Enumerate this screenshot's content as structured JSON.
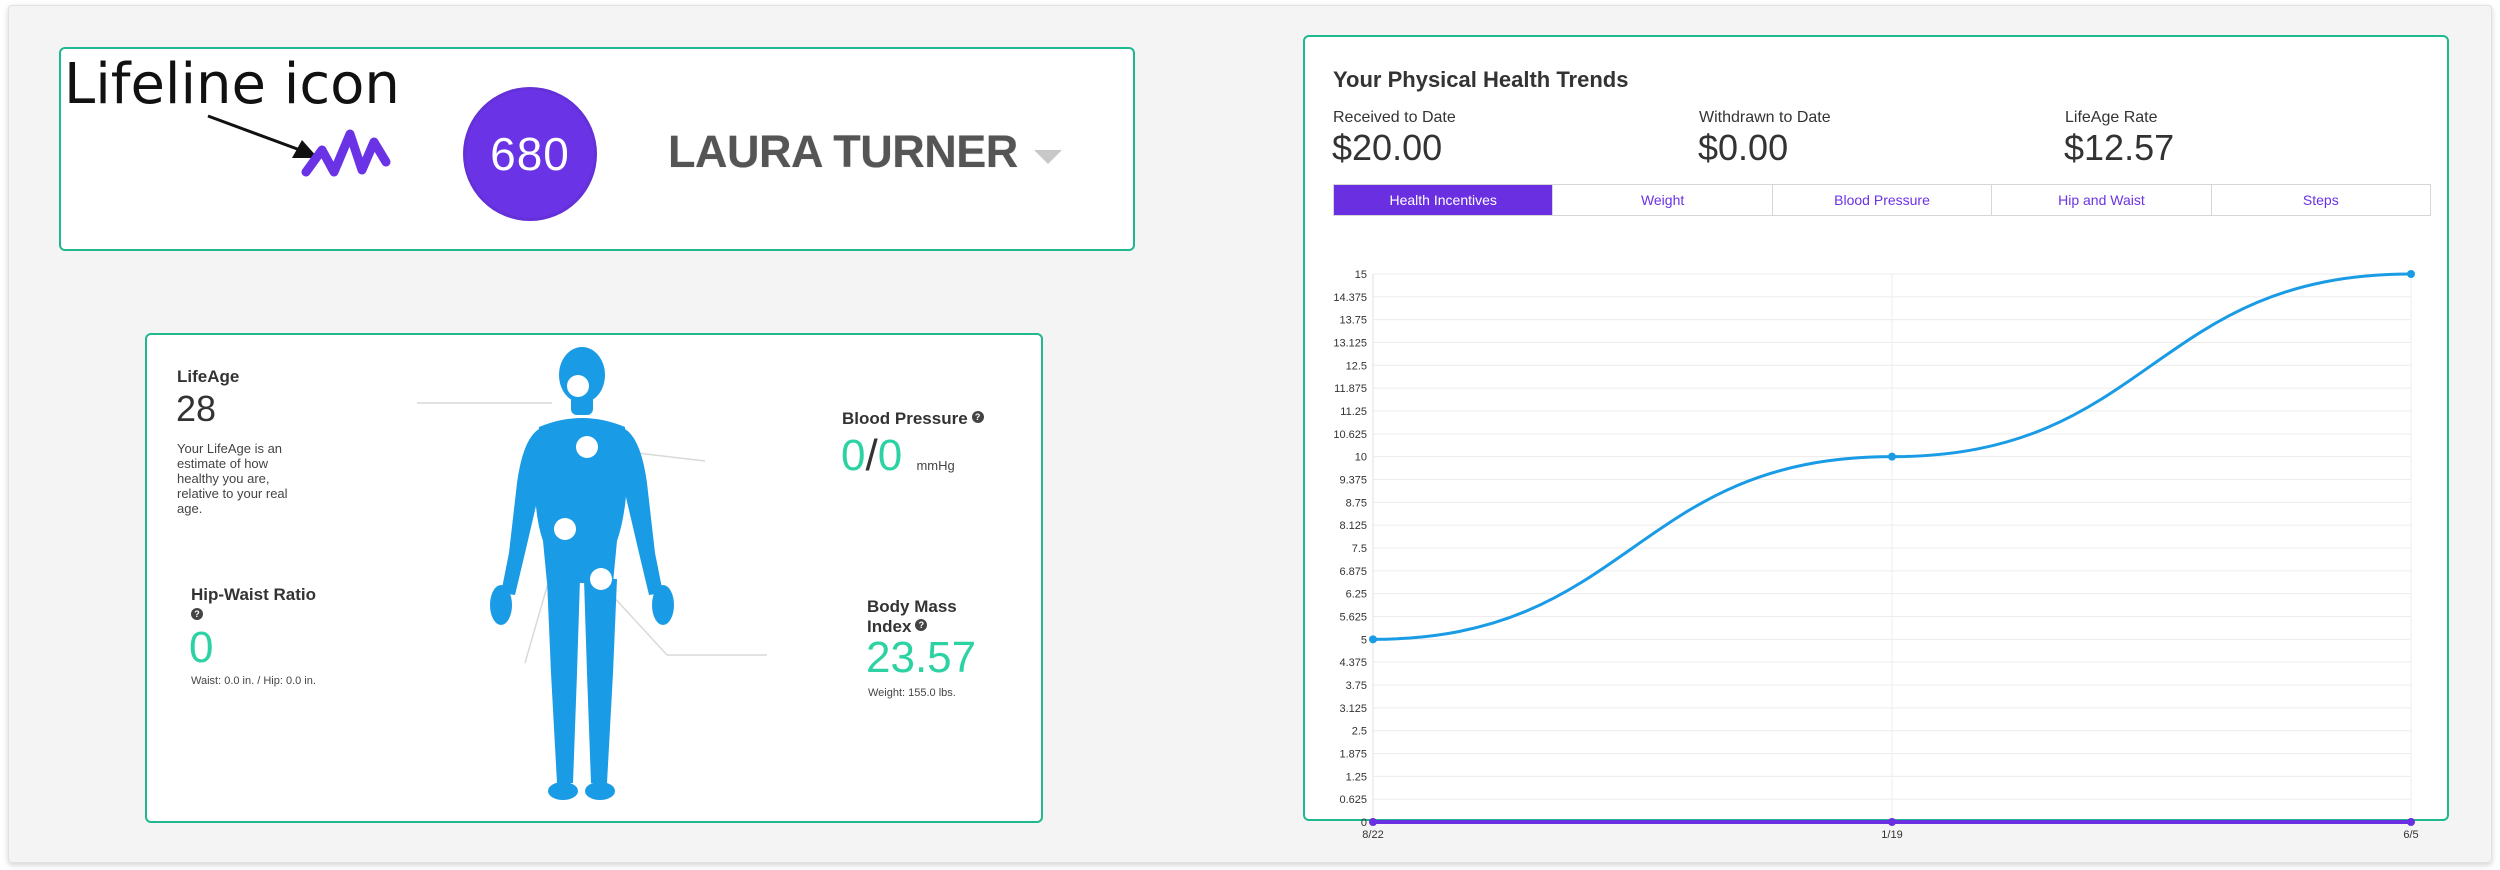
{
  "annotation": {
    "label": "Lifeline icon"
  },
  "header": {
    "icon": "lifeline-icon",
    "score": "680",
    "user_name": "LAURA TURNER",
    "dropdown_icon": "chevron-down-icon"
  },
  "body_metrics": {
    "lifeage": {
      "title": "LifeAge",
      "value": "28",
      "description": "Your LifeAge is an estimate of how healthy you are, relative to your real age."
    },
    "blood_pressure": {
      "title": "Blood Pressure",
      "systolic": "0",
      "separator": "/",
      "diastolic": "0",
      "unit": "mmHg"
    },
    "hip_waist": {
      "title": "Hip-Waist Ratio",
      "value": "0",
      "detail": "Waist: 0.0 in. / Hip: 0.0 in."
    },
    "bmi": {
      "title_line1": "Body Mass",
      "title_line2": "Index",
      "value": "23.57",
      "detail": "Weight: 155.0 lbs."
    },
    "help_symbol": "?"
  },
  "trends": {
    "title": "Your Physical Health Trends",
    "stats": [
      {
        "label": "Received to Date",
        "value": "$20.00"
      },
      {
        "label": "Withdrawn to Date",
        "value": "$0.00"
      },
      {
        "label": "LifeAge Rate",
        "value": "$12.57"
      }
    ],
    "tabs": [
      {
        "label": "Health Incentives",
        "active": true
      },
      {
        "label": "Weight",
        "active": false
      },
      {
        "label": "Blood Pressure",
        "active": false
      },
      {
        "label": "Hip and Waist",
        "active": false
      },
      {
        "label": "Steps",
        "active": false
      }
    ]
  },
  "colors": {
    "accent_purple": "#6b33e6",
    "card_border_green": "#1fb88f",
    "metric_green": "#2dd2a3",
    "body_blue": "#1a9be6",
    "series_blue": "#1a9be6",
    "series_purple": "#6b2fe2"
  },
  "chart_data": {
    "type": "line",
    "x": [
      "8/22",
      "1/19",
      "6/5"
    ],
    "y_ticks": [
      "0",
      "0.625",
      "1.25",
      "1.875",
      "2.5",
      "3.125",
      "3.75",
      "4.375",
      "5",
      "5.625",
      "6.25",
      "6.875",
      "7.5",
      "8.125",
      "8.75",
      "9.375",
      "10",
      "10.625",
      "11.25",
      "11.875",
      "12.5",
      "13.125",
      "13.75",
      "14.375",
      "15"
    ],
    "ylim": [
      0,
      15
    ],
    "grid": true,
    "series": [
      {
        "values": [
          5,
          10,
          15
        ],
        "color": "#1a9be6"
      },
      {
        "values": [
          0,
          0,
          0
        ],
        "color": "#6b2fe2"
      }
    ]
  }
}
